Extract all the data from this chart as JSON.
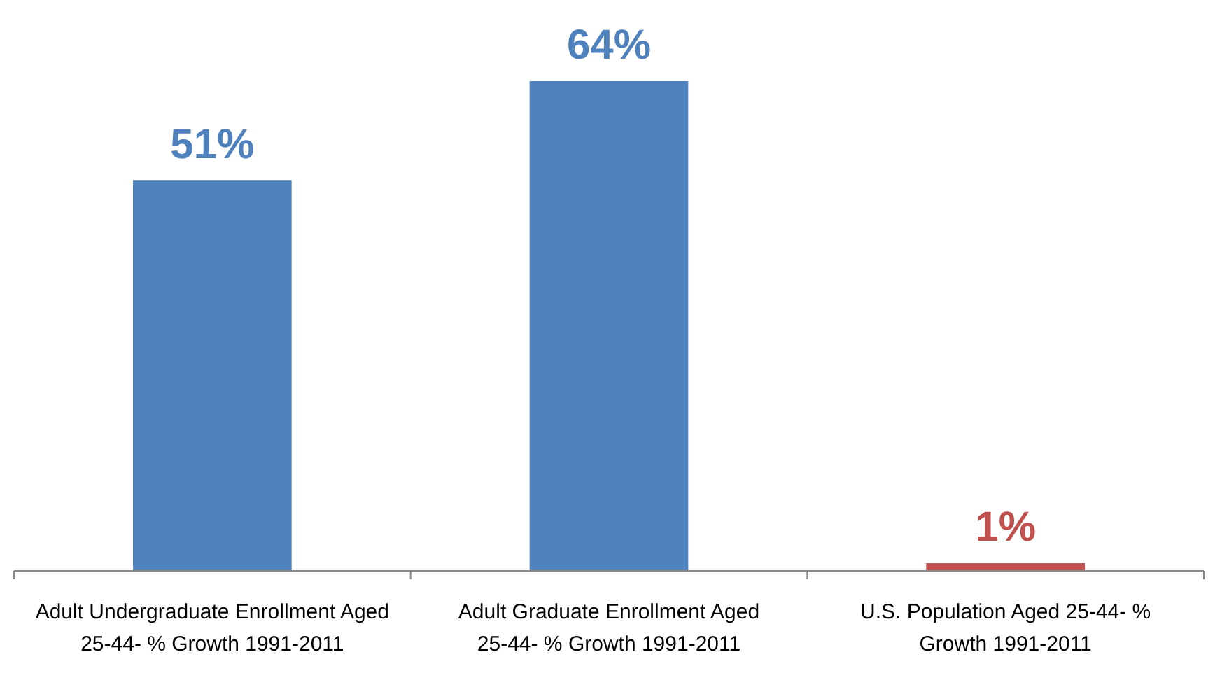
{
  "chart_data": {
    "type": "bar",
    "categories": [
      "Adult Undergraduate Enrollment Aged 25-44- % Growth 1991-2011",
      "Adult Graduate Enrollment Aged 25-44- % Growth 1991-2011",
      "U.S. Population Aged 25-44- % Growth 1991-2011"
    ],
    "values": [
      51,
      64,
      1
    ],
    "colors": [
      "#4f81bd",
      "#4f81bd",
      "#c0504d"
    ],
    "value_labels": [
      "51%",
      "64%",
      "1%"
    ]
  }
}
